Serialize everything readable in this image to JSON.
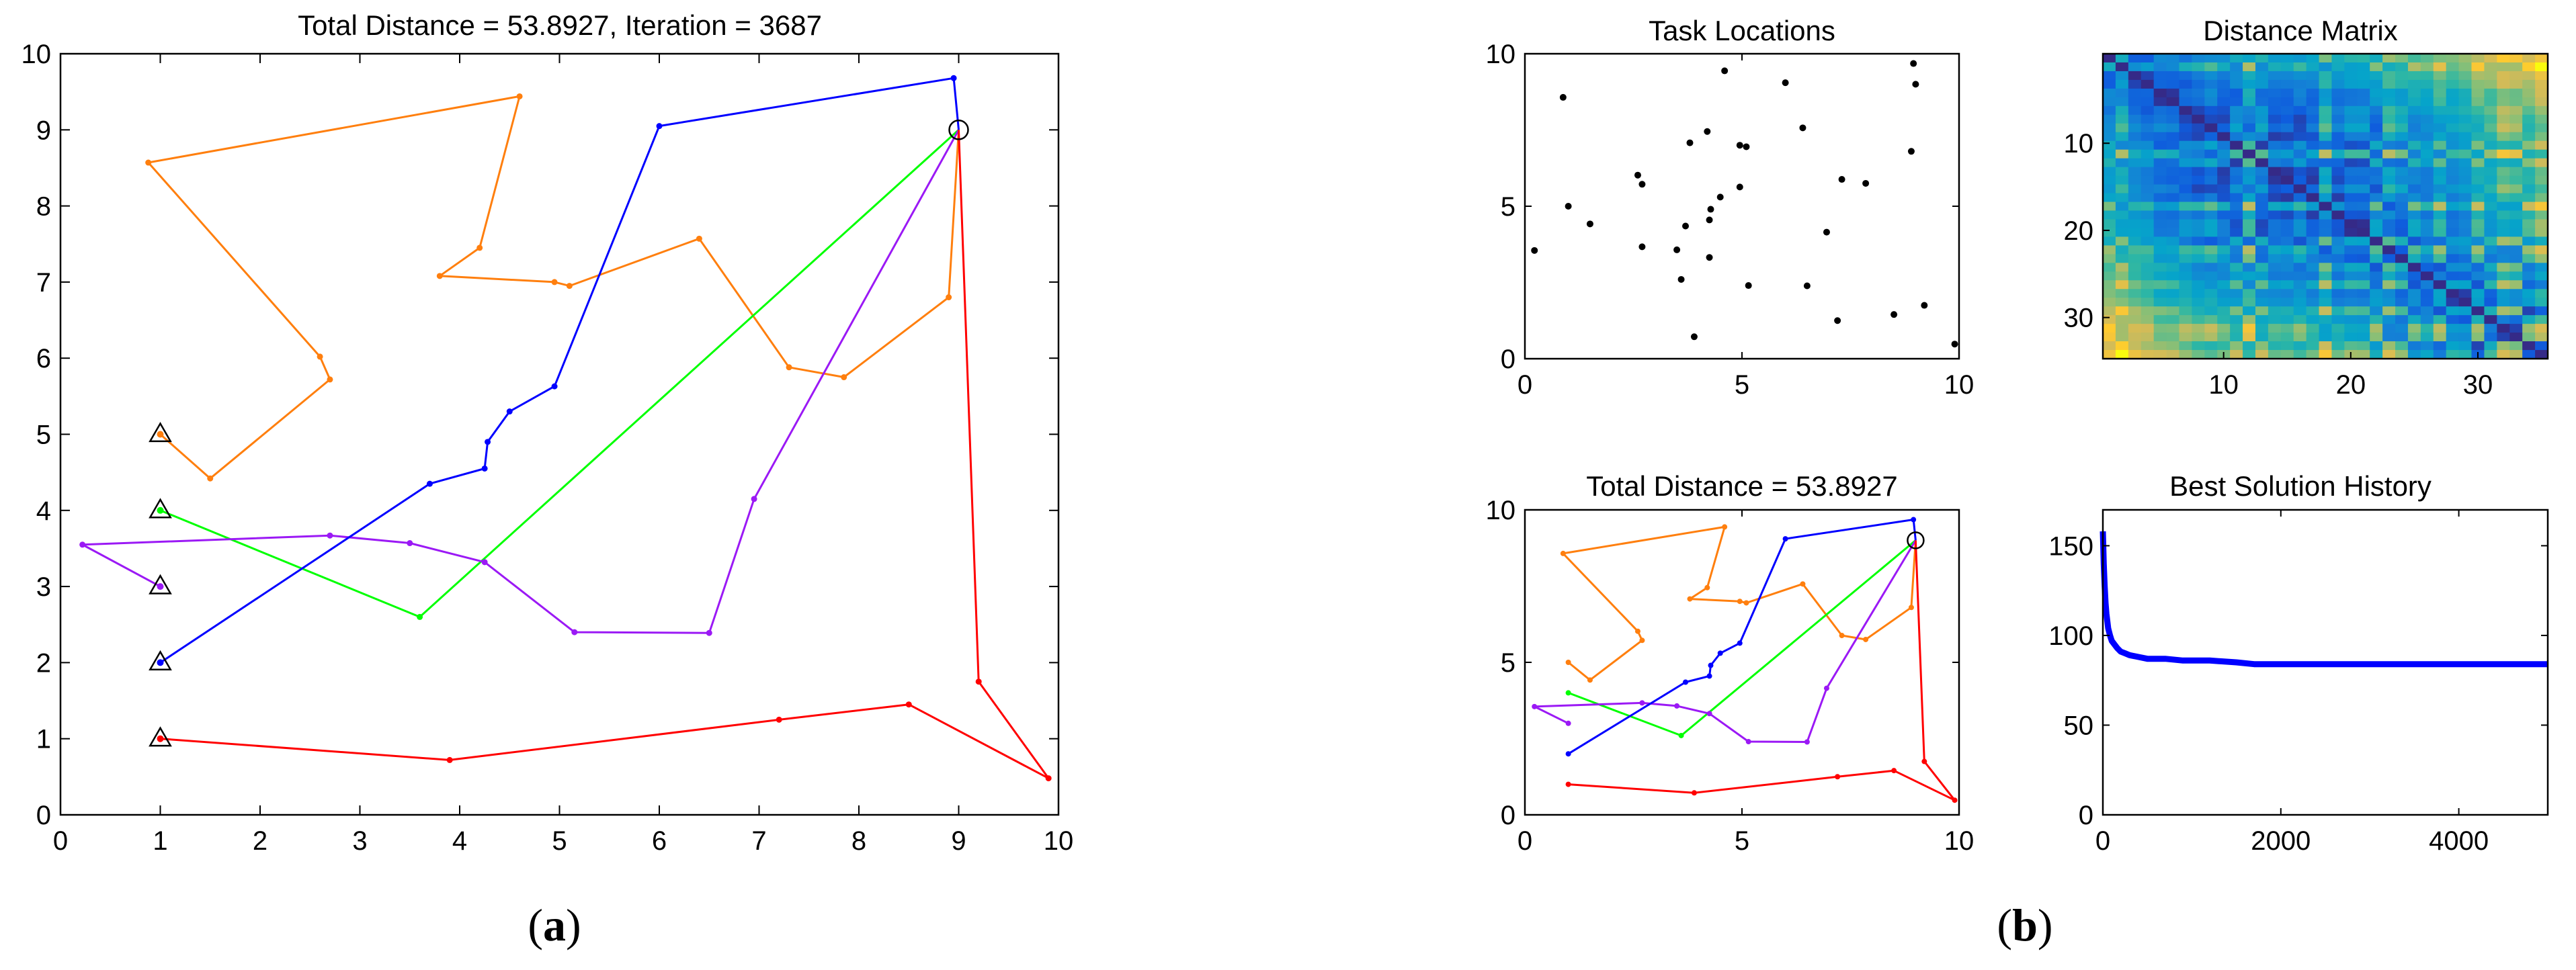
{
  "captions": {
    "a": "a",
    "b": "b"
  },
  "chart_data": [
    {
      "id": "main-route",
      "type": "line",
      "title": "Total Distance = 53.8927, Iteration = 3687",
      "xlim": [
        0,
        10
      ],
      "ylim": [
        0,
        10
      ],
      "xticks": [
        0,
        1,
        2,
        3,
        4,
        5,
        6,
        7,
        8,
        9,
        10
      ],
      "yticks": [
        0,
        1,
        2,
        3,
        4,
        5,
        6,
        7,
        8,
        9,
        10
      ],
      "depot": [
        9,
        9
      ],
      "starts": [
        [
          1,
          5
        ],
        [
          1,
          4
        ],
        [
          1,
          3
        ],
        [
          1,
          2
        ],
        [
          1,
          1
        ]
      ],
      "series": [
        {
          "name": "orange",
          "color": "#ff7f0e",
          "points": [
            [
              1,
              5
            ],
            [
              1.5,
              4.42
            ],
            [
              2.7,
              5.72
            ],
            [
              2.6,
              6.02
            ],
            [
              0.88,
              8.57
            ],
            [
              4.6,
              9.44
            ],
            [
              4.2,
              7.45
            ],
            [
              3.8,
              7.08
            ],
            [
              4.95,
              7
            ],
            [
              5.1,
              6.95
            ],
            [
              6.4,
              7.57
            ],
            [
              7.3,
              5.88
            ],
            [
              7.85,
              5.75
            ],
            [
              8.9,
              6.8
            ],
            [
              9,
              9
            ]
          ]
        },
        {
          "name": "green",
          "color": "#00ff00",
          "points": [
            [
              1,
              4
            ],
            [
              3.6,
              2.6
            ],
            [
              9,
              9
            ]
          ]
        },
        {
          "name": "purple",
          "color": "#9b19f5",
          "points": [
            [
              1,
              3
            ],
            [
              0.22,
              3.55
            ],
            [
              2.7,
              3.67
            ],
            [
              3.5,
              3.57
            ],
            [
              4.25,
              3.32
            ],
            [
              5.15,
              2.4
            ],
            [
              6.5,
              2.39
            ],
            [
              6.95,
              4.15
            ],
            [
              9,
              9
            ]
          ]
        },
        {
          "name": "blue",
          "color": "#0000ff",
          "points": [
            [
              1,
              2
            ],
            [
              3.7,
              4.35
            ],
            [
              4.25,
              4.55
            ],
            [
              4.28,
              4.9
            ],
            [
              4.5,
              5.3
            ],
            [
              4.95,
              5.63
            ],
            [
              6,
              9.05
            ],
            [
              8.95,
              9.68
            ],
            [
              9,
              9
            ]
          ]
        },
        {
          "name": "red",
          "color": "#ff0000",
          "points": [
            [
              1,
              1
            ],
            [
              3.9,
              0.72
            ],
            [
              7.2,
              1.25
            ],
            [
              8.5,
              1.45
            ],
            [
              9.9,
              0.48
            ],
            [
              9.2,
              1.75
            ],
            [
              9,
              9
            ]
          ]
        }
      ]
    },
    {
      "id": "task-locations",
      "type": "scatter",
      "title": "Task Locations",
      "xlim": [
        0,
        10
      ],
      "ylim": [
        0,
        10
      ],
      "xticks": [
        0,
        5,
        10
      ],
      "yticks": [
        0,
        5,
        10
      ],
      "points": [
        [
          0.22,
          3.55
        ],
        [
          0.88,
          8.57
        ],
        [
          1,
          5
        ],
        [
          1.5,
          4.42
        ],
        [
          2.6,
          6.02
        ],
        [
          2.7,
          5.72
        ],
        [
          2.7,
          3.67
        ],
        [
          3.5,
          3.57
        ],
        [
          3.6,
          2.6
        ],
        [
          3.7,
          4.35
        ],
        [
          3.8,
          7.08
        ],
        [
          3.9,
          0.72
        ],
        [
          4.2,
          7.45
        ],
        [
          4.25,
          4.55
        ],
        [
          4.28,
          4.9
        ],
        [
          4.25,
          3.32
        ],
        [
          4.5,
          5.3
        ],
        [
          4.6,
          9.44
        ],
        [
          4.95,
          5.63
        ],
        [
          4.95,
          7
        ],
        [
          5.1,
          6.95
        ],
        [
          5.15,
          2.4
        ],
        [
          6,
          9.05
        ],
        [
          6.4,
          7.57
        ],
        [
          6.5,
          2.39
        ],
        [
          6.95,
          4.15
        ],
        [
          7.2,
          1.25
        ],
        [
          7.3,
          5.88
        ],
        [
          7.85,
          5.75
        ],
        [
          8.5,
          1.45
        ],
        [
          8.9,
          6.8
        ],
        [
          8.95,
          9.68
        ],
        [
          9,
          9
        ],
        [
          9.2,
          1.75
        ],
        [
          9.9,
          0.48
        ]
      ]
    },
    {
      "id": "distance-matrix",
      "type": "heatmap",
      "title": "Distance Matrix",
      "size": 35,
      "xticks": [
        10,
        20,
        30
      ],
      "yticks": [
        10,
        20,
        30
      ],
      "colormap": [
        "#352a87",
        "#0f5cdd",
        "#1481d6",
        "#06a4ca",
        "#2eb7a4",
        "#87bf77",
        "#d1bb59",
        "#fec832",
        "#f9fb0e"
      ]
    },
    {
      "id": "route-small",
      "type": "line",
      "title": "Total Distance = 53.8927",
      "xlim": [
        0,
        10
      ],
      "ylim": [
        0,
        10
      ],
      "xticks": [
        0,
        5,
        10
      ],
      "yticks": [
        0,
        5,
        10
      ]
    },
    {
      "id": "best-history",
      "type": "line",
      "title": "Best Solution History",
      "xlim": [
        0,
        5000
      ],
      "ylim": [
        0,
        170
      ],
      "xticks": [
        0,
        2000,
        4000
      ],
      "yticks": [
        0,
        50,
        100,
        150
      ],
      "x": [
        0,
        10,
        20,
        30,
        40,
        50,
        60,
        80,
        100,
        130,
        160,
        200,
        250,
        300,
        400,
        500,
        700,
        900,
        1200,
        1500,
        1700,
        2000,
        2500,
        3000,
        3500,
        4000,
        4500,
        5000
      ],
      "values": [
        158,
        140,
        128,
        118,
        112,
        108,
        104,
        100,
        97,
        95,
        93,
        91,
        90,
        89,
        88,
        87,
        87,
        86,
        86,
        85,
        84,
        84,
        84,
        84,
        84,
        84,
        84,
        84
      ],
      "color": "#0000ff"
    }
  ]
}
